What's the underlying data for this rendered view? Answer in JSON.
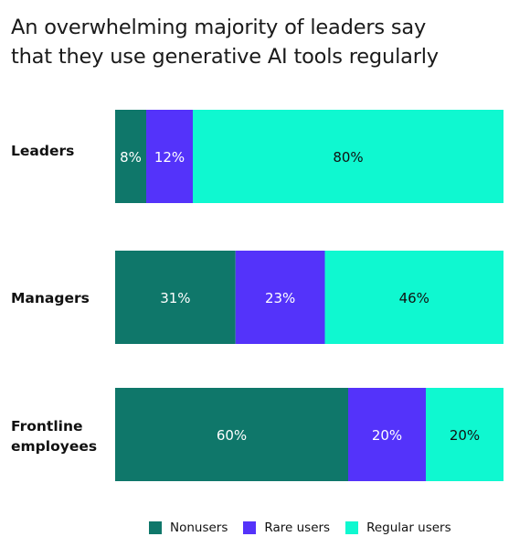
{
  "title": {
    "line1": "An overwhelming majority of leaders say",
    "line2": "that they use generative AI tools regularly"
  },
  "colors": {
    "nonusers": "#0f776a",
    "rare": "#5433fa",
    "regular": "#0ff8d0"
  },
  "legend": [
    {
      "label": "Nonusers",
      "color": "#0f776a"
    },
    {
      "label": "Rare users",
      "color": "#5433fa"
    },
    {
      "label": "Regular users",
      "color": "#0ff8d0"
    }
  ],
  "chart_data": {
    "type": "bar",
    "orientation": "horizontal",
    "stacked": true,
    "categories": [
      "Leaders",
      "Managers",
      "Frontline employees"
    ],
    "series": [
      {
        "name": "Nonusers",
        "values": [
          8,
          31,
          60
        ],
        "labels": [
          "8%",
          "31%",
          "60%"
        ]
      },
      {
        "name": "Rare users",
        "values": [
          12,
          23,
          20
        ],
        "labels": [
          "12%",
          "23%",
          "20%"
        ]
      },
      {
        "name": "Regular users",
        "values": [
          80,
          46,
          20
        ],
        "labels": [
          "80%",
          "46%",
          "20%"
        ]
      }
    ],
    "xlim": [
      0,
      100
    ],
    "title": "An overwhelming majority of leaders say that they use generative AI tools regularly",
    "xlabel": "",
    "ylabel": "",
    "grid": false,
    "legend_position": "bottom"
  }
}
